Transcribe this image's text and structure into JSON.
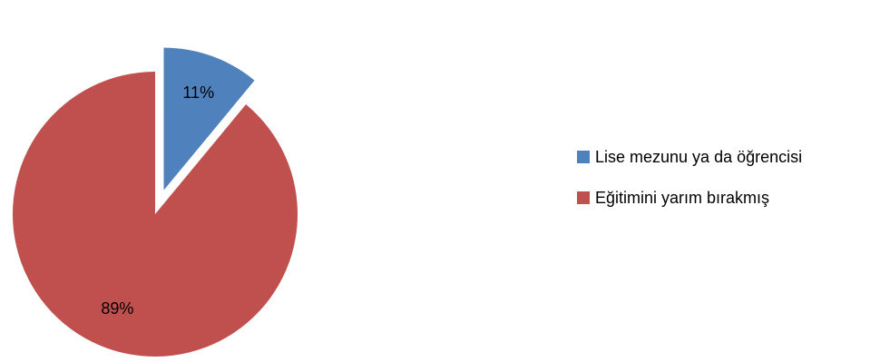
{
  "chart_data": {
    "type": "pie",
    "title": "",
    "slices": [
      {
        "name": "Lise mezunu ya da öğrencisi",
        "value": 11,
        "label": "11%",
        "color": "#4F81BD"
      },
      {
        "name": "Eğitimini yarım bırakmış",
        "value": 89,
        "label": "89%",
        "color": "#C0504D"
      }
    ],
    "exploded_slice": "Lise mezunu ya da öğrencisi",
    "legend_position": "right",
    "start_angle": "top, clockwise"
  }
}
